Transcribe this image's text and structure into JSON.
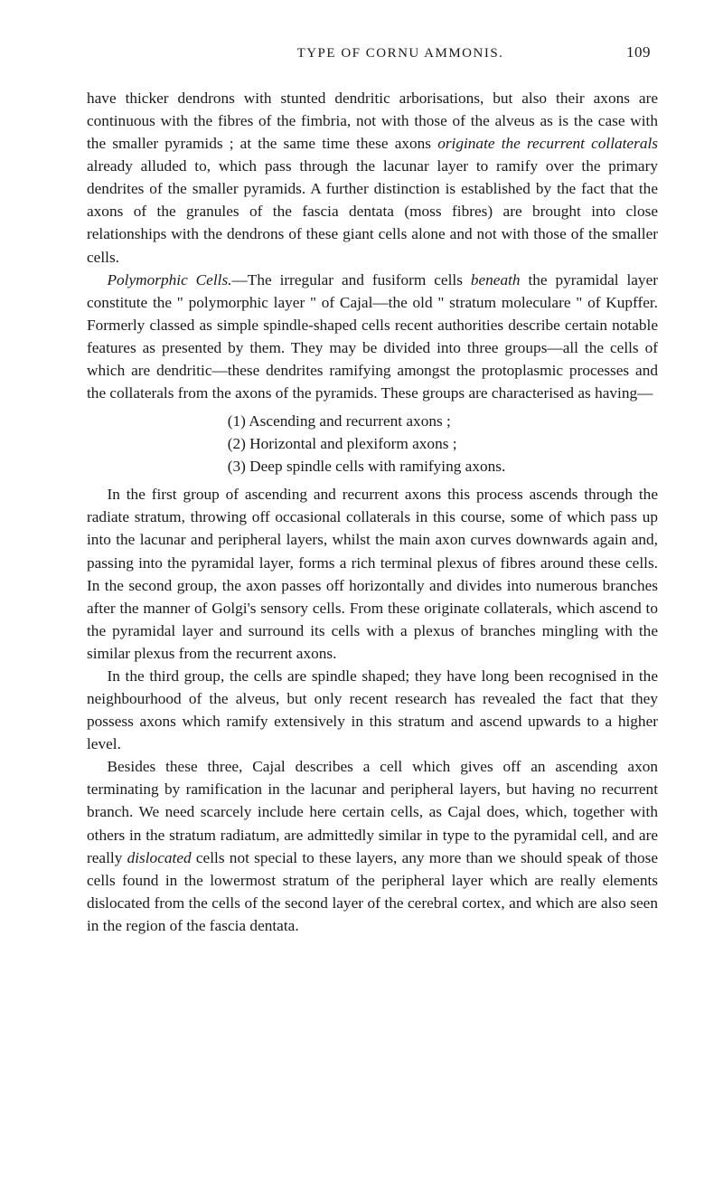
{
  "header": {
    "running_head": "TYPE OF CORNU AMMONIS.",
    "page_number": "109"
  },
  "paragraphs": {
    "p1": "have thicker dendrons with stunted dendritic arborisations, but also their axons are continuous with the fibres of the fimbria, not with those of the alveus as is the case with the smaller pyramids ; at the same time these axons ",
    "p1_i1": "originate the recurrent collaterals",
    "p1_b": " already alluded to, which pass through the lacunar layer to ramify over the primary dendrites of the smaller pyramids.   A further distinction is established by the fact that the axons of the granules of the fascia dentata (moss fibres) are brought into close relationships with the dendrons of these giant cells alone and not with those of the smaller cells.",
    "p2_i1": "Polymorphic Cells.",
    "p2_a": "—The irregular and fusiform cells ",
    "p2_i2": "beneath",
    "p2_b": " the pyramidal layer constitute the \" polymorphic layer \" of Cajal—the old \" stratum moleculare \" of Kupffer.   Formerly classed as simple spindle-shaped cells recent authorities describe certain notable features as presented by them.   They may be divided into three groups—all the cells of which are dendritic—these dendrites ramifying amongst the protoplasmic processes and the collaterals from the axons of the pyramids.   These groups are characterised as having—",
    "li1": "(1)  Ascending and recurrent axons ;",
    "li2": "(2)  Horizontal and plexiform axons ;",
    "li3": "(3)  Deep spindle cells with ramifying axons.",
    "p3": "In the first group of ascending and recurrent axons this process ascends through the radiate stratum, throwing off occasional collaterals in this course, some of which pass up into the lacunar and peripheral layers, whilst the main axon curves downwards again and, passing into the pyramidal layer, forms a rich terminal plexus of fibres around these cells.   In the second group, the axon passes off horizontally and divides into numerous branches after the manner of Golgi's sensory cells.   From these originate collaterals, which ascend to the pyramidal layer and surround its cells with a plexus of branches mingling with the similar plexus from the recurrent axons.",
    "p4": "In the third group, the cells are spindle shaped; they have long been recognised in the neighbourhood of the alveus, but only recent research has revealed the fact that they possess axons which ramify extensively in this stratum and ascend upwards to a higher level.",
    "p5_a": "Besides these three, Cajal describes a cell which gives off an ascending axon terminating by ramification in the lacunar and peripheral layers, but having no recurrent branch.   We need scarcely include here certain cells, as Cajal does, which, together with others in the stratum radiatum, are admittedly similar in type to the pyramidal cell, and are really ",
    "p5_i1": "dislocated",
    "p5_b": " cells not special to these layers, any more than we should speak of those cells found in the lowermost stratum of the peripheral layer which are really elements dislocated from the cells of the second layer of the cerebral cortex, and which are also seen in the region of the fascia dentata."
  }
}
